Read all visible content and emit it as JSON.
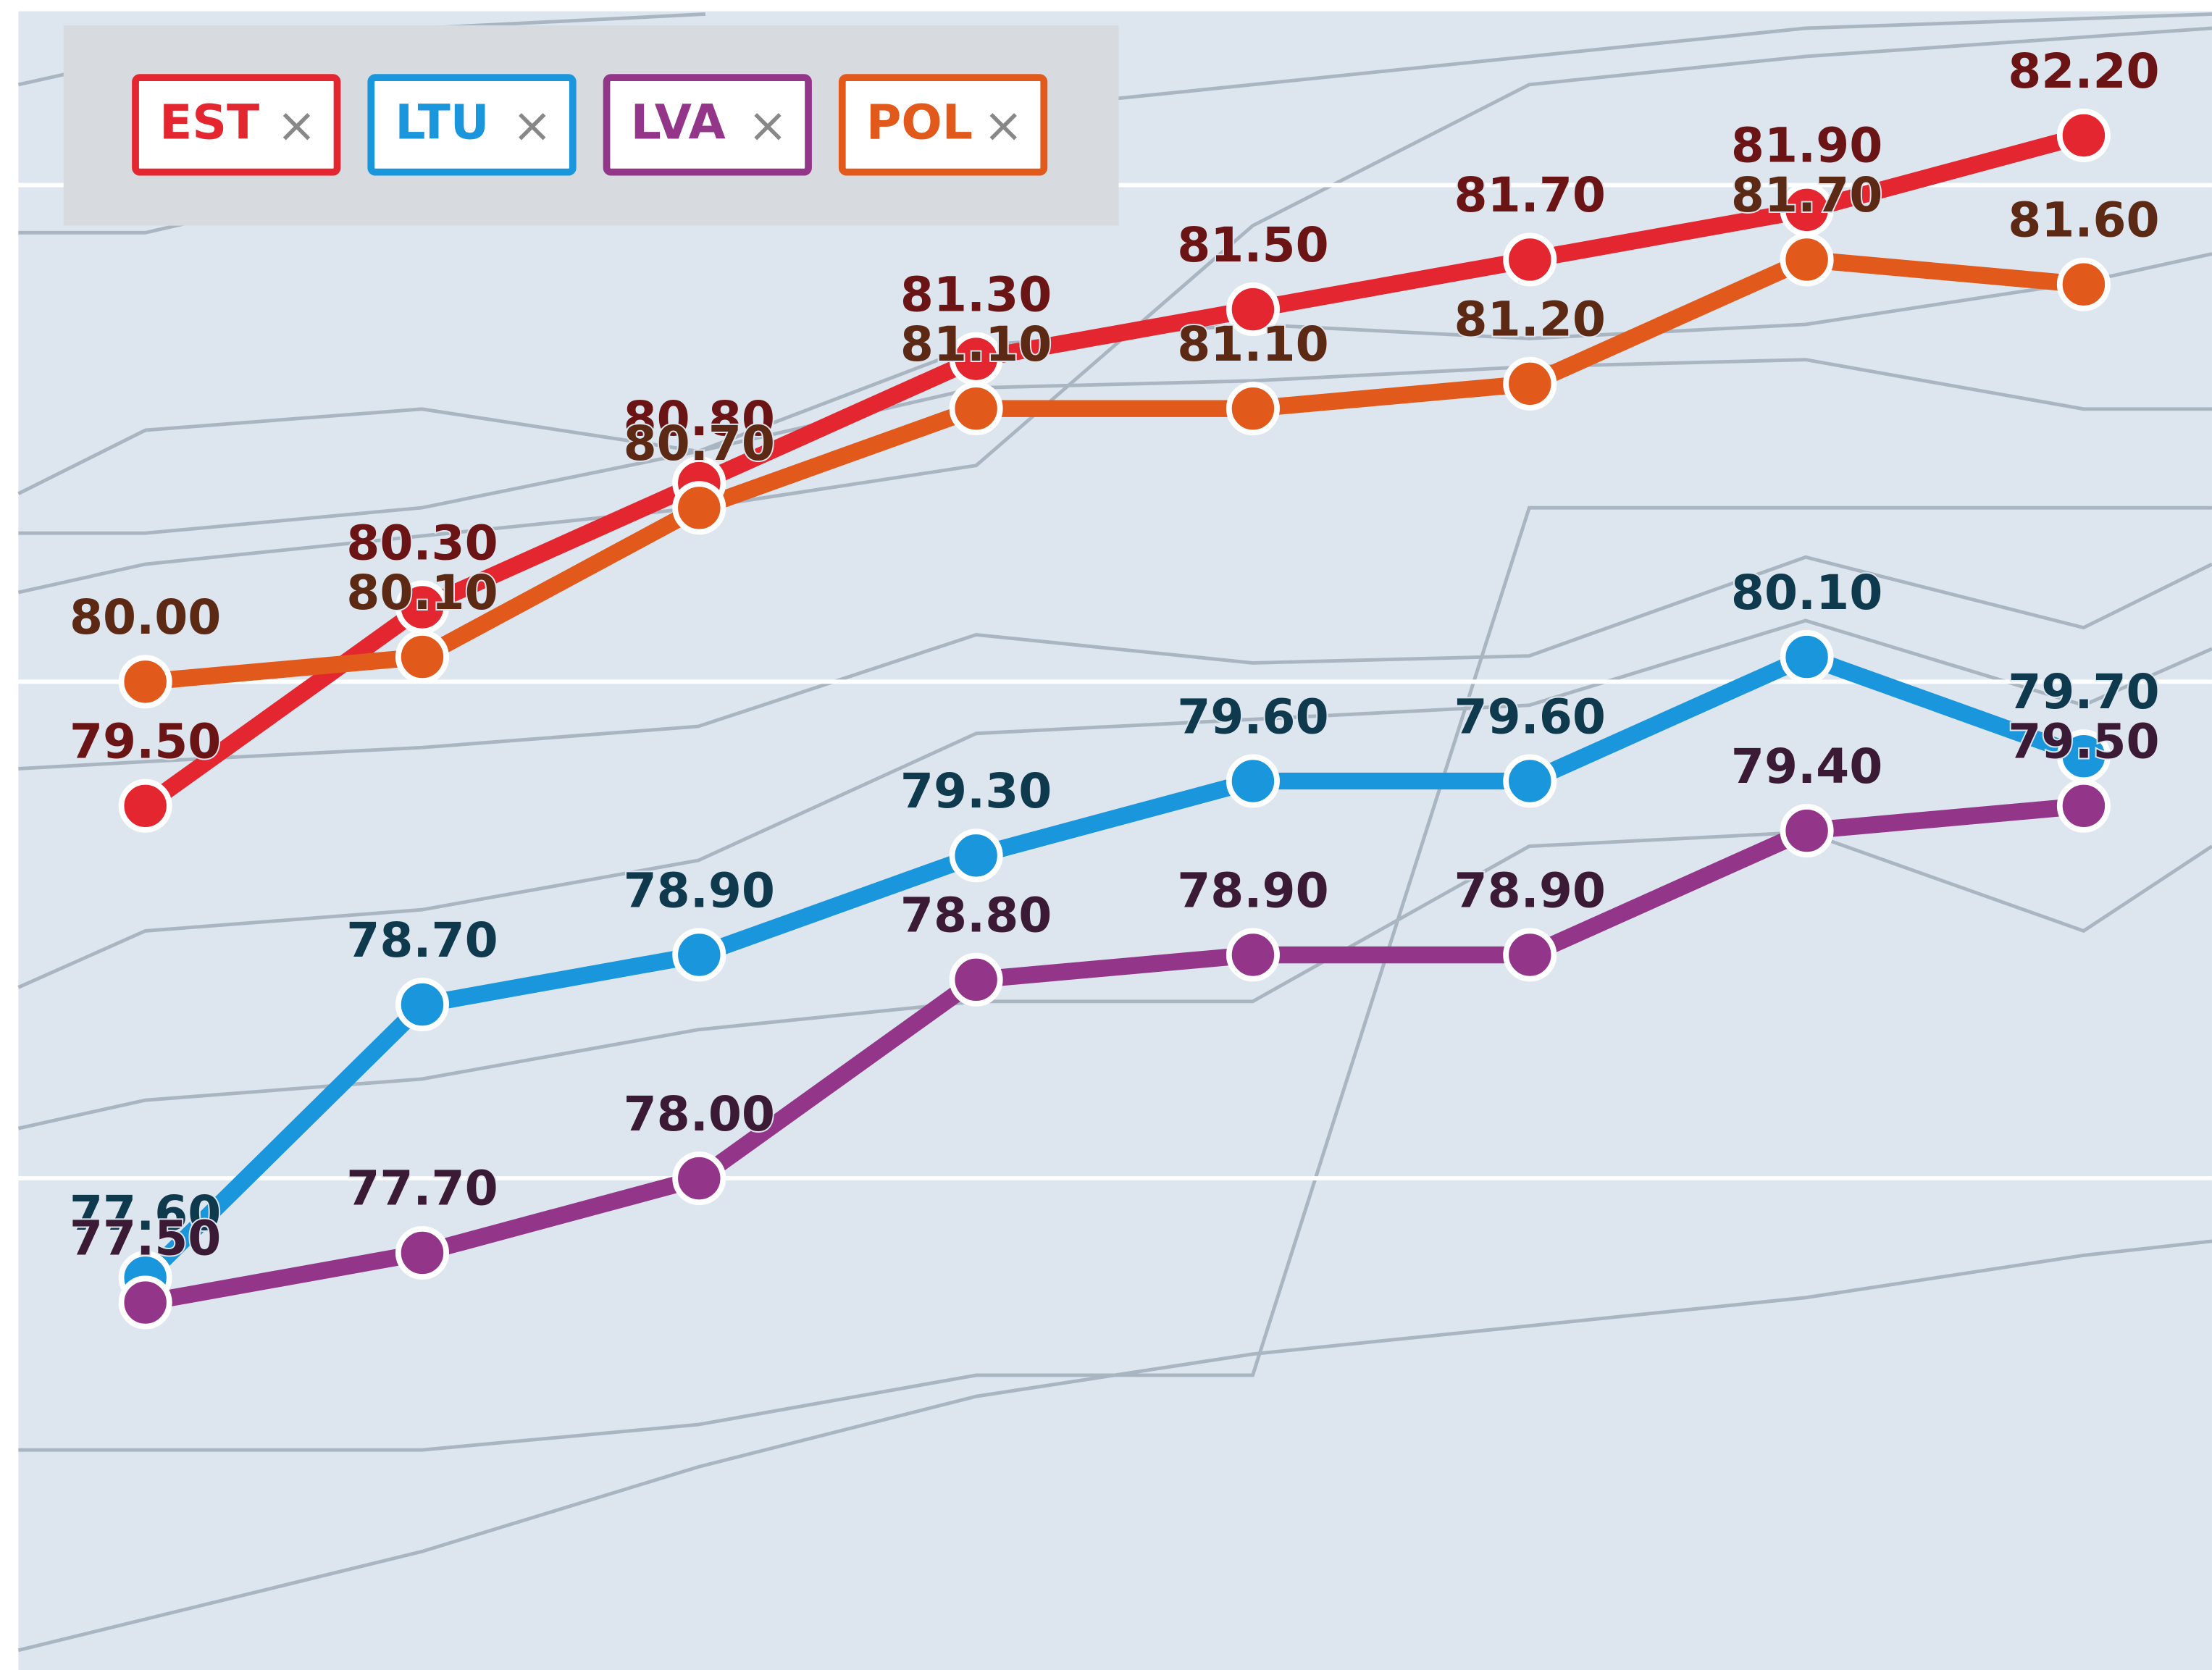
{
  "chart_data": {
    "type": "line",
    "categories": [
      null,
      null,
      null,
      null,
      null,
      null,
      null,
      null
    ],
    "series": [
      {
        "name": "EST",
        "color": "#e3262f",
        "label_color": "#6b1416",
        "values": [
          79.5,
          80.3,
          80.8,
          81.3,
          81.5,
          81.7,
          81.9,
          82.2
        ],
        "value_labels": [
          "79.50",
          "80.30",
          "80.80",
          "81.30",
          "81.50",
          "81.70",
          "81.90",
          "82.20"
        ]
      },
      {
        "name": "LTU",
        "color": "#1a96dc",
        "label_color": "#0f3a4e",
        "values": [
          77.6,
          78.7,
          78.9,
          79.3,
          79.6,
          79.6,
          80.1,
          79.7
        ],
        "value_labels": [
          "77.60",
          "78.70",
          "78.90",
          "79.30",
          "79.60",
          "79.60",
          "80.10",
          "79.70"
        ]
      },
      {
        "name": "LVA",
        "color": "#93368a",
        "label_color": "#3a1a35",
        "values": [
          77.5,
          77.7,
          78.0,
          78.8,
          78.9,
          78.9,
          79.4,
          79.5
        ],
        "value_labels": [
          "77.50",
          "77.70",
          "78.00",
          "78.80",
          "78.90",
          "78.90",
          "79.40",
          "79.50"
        ]
      },
      {
        "name": "POL",
        "color": "#e2591c",
        "label_color": "#5c2a14",
        "values": [
          80.0,
          80.1,
          80.7,
          81.1,
          81.1,
          81.2,
          81.7,
          81.6
        ],
        "value_labels": [
          "80.00",
          "80.10",
          "80.70",
          "81.10",
          "81.10",
          "81.20",
          "81.70",
          "81.60"
        ]
      }
    ],
    "legend_close": "×",
    "ylim": [
      76.02,
      82.7
    ],
    "yticks": [
      78,
      80,
      82
    ],
    "grid": true
  }
}
